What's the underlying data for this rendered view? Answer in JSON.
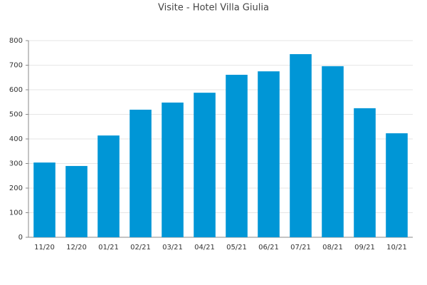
{
  "chart_data": {
    "type": "bar",
    "title": "Visite - Hotel Villa Giulia",
    "categories": [
      "11/20",
      "12/20",
      "01/21",
      "02/21",
      "03/21",
      "04/21",
      "05/21",
      "06/21",
      "07/21",
      "08/21",
      "09/21",
      "10/21"
    ],
    "values": [
      304,
      290,
      414,
      519,
      548,
      588,
      661,
      675,
      745,
      696,
      525,
      423
    ],
    "color": "#0096d6",
    "ylim": [
      0,
      800
    ],
    "yticks": [
      0,
      100,
      200,
      300,
      400,
      500,
      600,
      700,
      800
    ],
    "grid": true
  }
}
